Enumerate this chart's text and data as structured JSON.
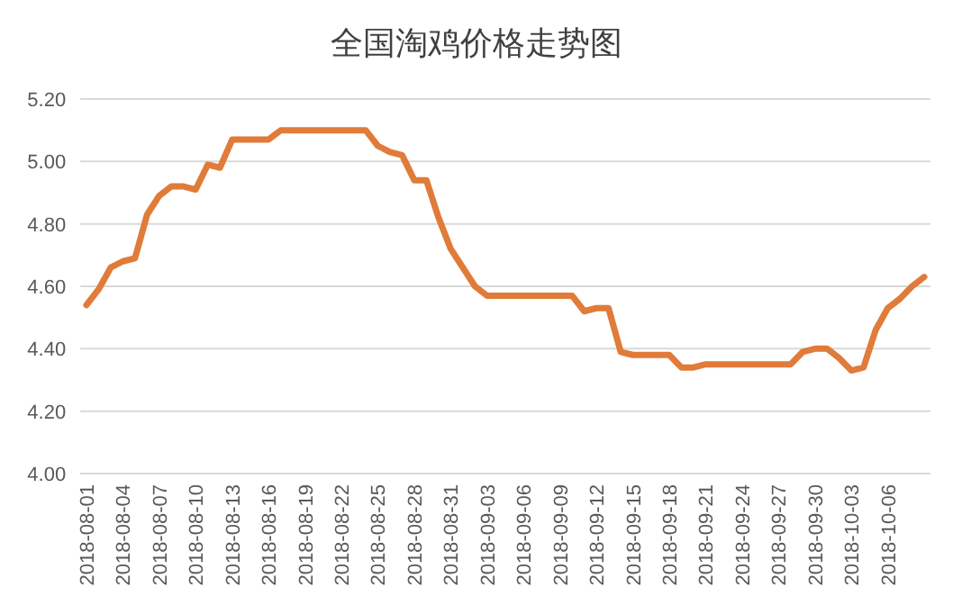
{
  "chart_data": {
    "type": "line",
    "title": "全国淘鸡价格走势图",
    "categories": [
      "2018-08-01",
      null,
      null,
      "2018-08-04",
      null,
      null,
      "2018-08-07",
      null,
      null,
      "2018-08-10",
      null,
      null,
      "2018-08-13",
      null,
      null,
      "2018-08-16",
      null,
      null,
      "2018-08-19",
      null,
      null,
      "2018-08-22",
      null,
      null,
      "2018-08-25",
      null,
      null,
      "2018-08-28",
      null,
      null,
      "2018-08-31",
      null,
      null,
      "2018-09-03",
      null,
      null,
      "2018-09-06",
      null,
      null,
      "2018-09-09",
      null,
      null,
      "2018-09-12",
      null,
      null,
      "2018-09-15",
      null,
      null,
      "2018-09-18",
      null,
      null,
      "2018-09-21",
      null,
      null,
      "2018-09-24",
      null,
      null,
      "2018-09-27",
      null,
      null,
      "2018-09-30",
      null,
      null,
      "2018-10-03",
      null,
      null,
      "2018-10-06",
      null,
      null,
      null
    ],
    "series": [
      {
        "color": "#e07b39",
        "values": [
          4.54,
          4.59,
          4.66,
          4.68,
          4.69,
          4.83,
          4.89,
          4.92,
          4.92,
          4.91,
          4.99,
          4.98,
          5.07,
          5.07,
          5.07,
          5.07,
          5.1,
          5.1,
          5.1,
          5.1,
          5.1,
          5.1,
          5.1,
          5.1,
          5.05,
          5.03,
          5.02,
          4.94,
          4.94,
          4.82,
          4.72,
          4.66,
          4.6,
          4.57,
          4.57,
          4.57,
          4.57,
          4.57,
          4.57,
          4.57,
          4.57,
          4.52,
          4.53,
          4.53,
          4.39,
          4.38,
          4.38,
          4.38,
          4.38,
          4.34,
          4.34,
          4.35,
          4.35,
          4.35,
          4.35,
          4.35,
          4.35,
          4.35,
          4.35,
          4.39,
          4.4,
          4.4,
          4.37,
          4.33,
          4.34,
          4.46,
          4.53,
          4.56,
          4.6,
          4.63
        ]
      }
    ],
    "ylim": [
      4.0,
      5.2
    ],
    "yticks": [
      {
        "value": 4.0,
        "label": "4.00"
      },
      {
        "value": 4.2,
        "label": "4.20"
      },
      {
        "value": 4.4,
        "label": "4.40"
      },
      {
        "value": 4.6,
        "label": "4.60"
      },
      {
        "value": 4.8,
        "label": "4.80"
      },
      {
        "value": 5.0,
        "label": "5.00"
      },
      {
        "value": 5.2,
        "label": "5.20"
      }
    ],
    "grid": "y",
    "marker": "none",
    "line_style": "solid"
  }
}
